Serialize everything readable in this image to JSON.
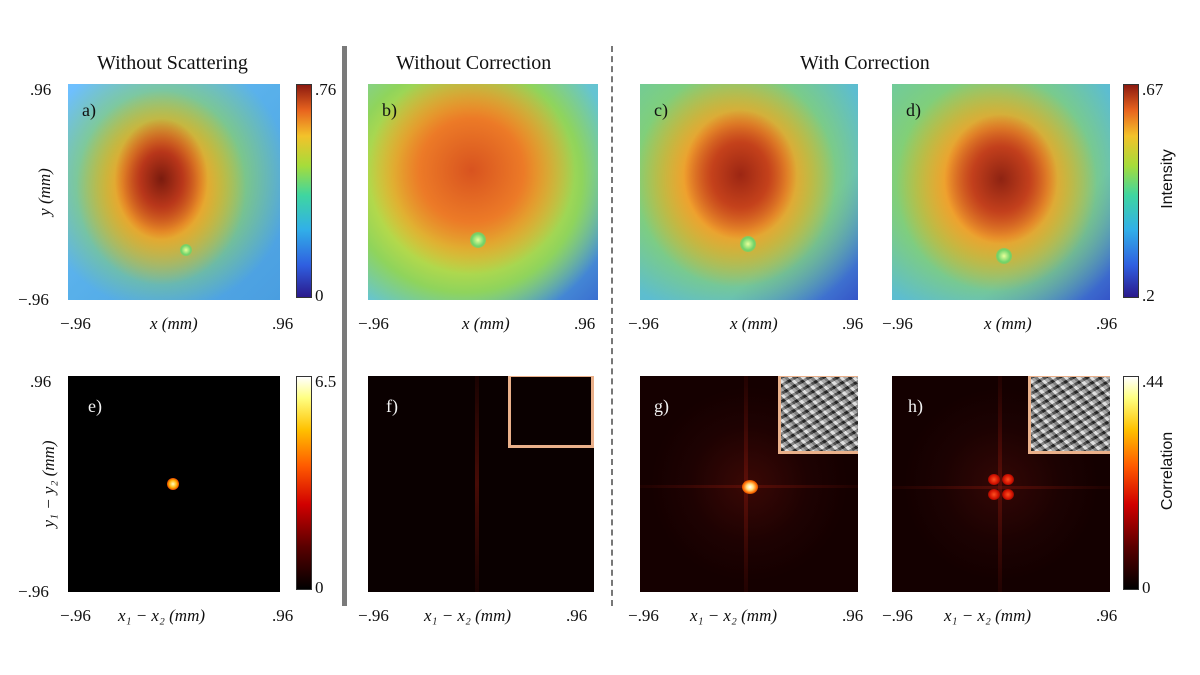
{
  "sections": {
    "without_scattering": "Without Scattering",
    "without_correction": "Without Correction",
    "with_correction": "With Correction"
  },
  "panels": {
    "a": "a)",
    "b": "b)",
    "c": "c)",
    "d": "d)",
    "e": "e)",
    "f": "f)",
    "g": "g)",
    "h": "h)"
  },
  "ticks": {
    "pos": ".96",
    "neg": "−.96",
    "zero": "0"
  },
  "axes": {
    "x_mm": "x (mm)",
    "y_mm": "y (mm)",
    "dx_mm": "x₁ − x₂ (mm)",
    "dy_mm": "y₁ − y₂ (mm)"
  },
  "colorbars": {
    "intensity_a": {
      "max": ".76",
      "min": "0"
    },
    "intensity_bd": {
      "max": ".67",
      "min": ".2",
      "label": "Intensity"
    },
    "correlation_e": {
      "max": "6.5",
      "min": "0"
    },
    "correlation_fh": {
      "max": ".44",
      "min": "0",
      "label": "Correlation"
    }
  },
  "colors": {
    "inset_border": "#eab08a",
    "divider": "#7a7a7a"
  }
}
